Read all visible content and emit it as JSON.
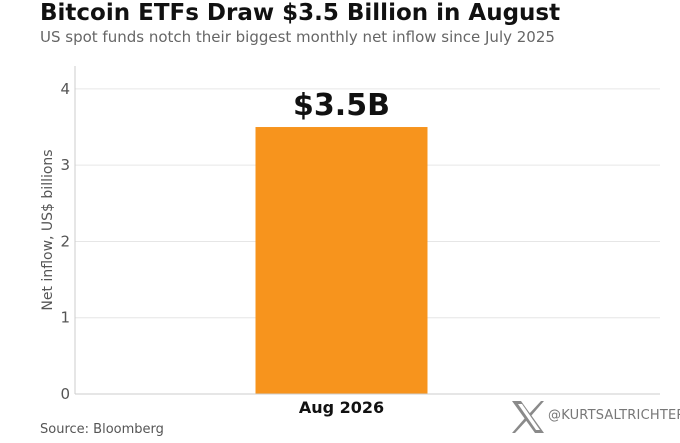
{
  "header": {
    "title": "Bitcoin ETFs Draw $3.5 Billion in August",
    "subtitle": "US spot funds notch their biggest monthly net inflow since July 2025"
  },
  "footer": {
    "source": "Source: Bloomberg",
    "watermark_handle": "@KURTSALTRICHTER",
    "watermark_icon": "x-logo-icon"
  },
  "colors": {
    "bar": "#F7941D",
    "grid": "#e6e6e6",
    "text": "#111111",
    "muted": "#666666"
  },
  "chart_data": {
    "type": "bar",
    "title": "Bitcoin ETFs Draw $3.5 Billion in August",
    "subtitle": "US spot funds notch their biggest monthly net inflow since July 2025",
    "xlabel": "",
    "ylabel": "Net inflow, US$ billions",
    "categories": [
      "Aug 2026"
    ],
    "values": [
      3.5
    ],
    "data_labels": [
      "$3.5B"
    ],
    "ylim": [
      0,
      4.3
    ],
    "yticks": [
      0,
      1,
      2,
      3,
      4
    ],
    "grid": true
  }
}
